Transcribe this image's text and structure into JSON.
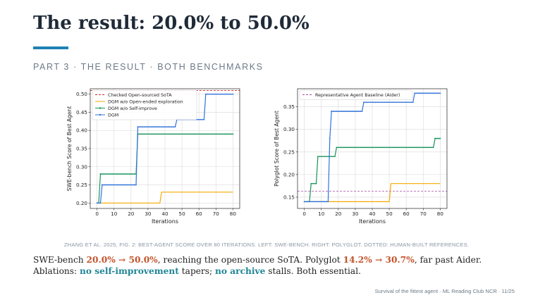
{
  "slide": {
    "title": "The result: 20.0% to 50.0%",
    "subtitle": "PART 3  ·  THE RESULT  ·  BOTH BENCHMARKS",
    "caption": "ZHANG ET AL. 2025, FIG. 2: BEST-AGENT SCORE OVER 80 ITERATIONS. LEFT: SWE-BENCH. RIGHT: POLYGLOT. DOTTED: HUMAN-BUILT REFERENCES.",
    "body": {
      "l1_a": "SWE-bench ",
      "l1_b": "20.0% → 50.0%",
      "l1_c": ", reaching the open-source SoTA. Polyglot ",
      "l1_d": "14.2% → 30.7%",
      "l1_e": ", far past Aider.",
      "l2_a": "Ablations: ",
      "l2_b": "no self-improvement",
      "l2_c": " tapers; ",
      "l2_d": "no archive",
      "l2_e": " stalls.  Both essential."
    },
    "footer": "Survival of the fittest agent  ·  ML Reading Club NCR  ·  11/25",
    "colors": {
      "accent_rule": "#1e82b4",
      "highlight": "#c4532b",
      "teal": "#1f8596"
    }
  },
  "chart_data": [
    {
      "type": "line",
      "xlabel": "Iterations",
      "ylabel": "SWE-bench Score of Best Agent",
      "xlim": [
        -4,
        84
      ],
      "ylim": [
        0.185,
        0.515
      ],
      "xticks": [
        0,
        10,
        20,
        30,
        40,
        50,
        60,
        70,
        80
      ],
      "yticks": [
        0.2,
        0.25,
        0.3,
        0.35,
        0.4,
        0.45,
        0.5
      ],
      "tick_decimals": 2,
      "grid": true,
      "legend_position": "top-left",
      "reference_lines": [
        {
          "name": "Checked Open-sourced SoTA",
          "y": 0.51,
          "color": "#d62728"
        }
      ],
      "series": [
        {
          "name": "DGM w/o Open-ended exploration",
          "color": "#f5a800",
          "marker": "none",
          "x": [
            0,
            37,
            38,
            80
          ],
          "y": [
            0.2,
            0.2,
            0.23,
            0.23
          ]
        },
        {
          "name": "DGM w/o Self-improve",
          "color": "#16935a",
          "marker": "dot",
          "x": [
            0,
            1,
            2,
            23,
            24,
            80
          ],
          "y": [
            0.2,
            0.2,
            0.28,
            0.28,
            0.39,
            0.39
          ]
        },
        {
          "name": "DGM",
          "color": "#2f72d9",
          "marker": "dot",
          "x": [
            0,
            2,
            3,
            23,
            24,
            46,
            47,
            63,
            64,
            80
          ],
          "y": [
            0.2,
            0.2,
            0.25,
            0.25,
            0.41,
            0.41,
            0.43,
            0.43,
            0.5,
            0.5
          ]
        }
      ]
    },
    {
      "type": "line",
      "xlabel": "Iterations",
      "ylabel": "Polyglot Score of Best Agent",
      "xlim": [
        -4,
        84
      ],
      "ylim": [
        0.125,
        0.39
      ],
      "xticks": [
        0,
        10,
        20,
        30,
        40,
        50,
        60,
        70,
        80
      ],
      "yticks": [
        0.15,
        0.2,
        0.25,
        0.3,
        0.35
      ],
      "tick_decimals": 2,
      "grid": true,
      "legend_position": "top-left",
      "reference_lines": [
        {
          "name": "Representative Agent Baseline (Aider)",
          "y": 0.163,
          "color": "#a64ca6"
        }
      ],
      "series": [
        {
          "name": "DGM w/o Open-ended exploration",
          "color": "#f5a800",
          "marker": "none",
          "x": [
            0,
            50,
            51,
            80
          ],
          "y": [
            0.14,
            0.14,
            0.18,
            0.18
          ]
        },
        {
          "name": "DGM w/o Self-improve",
          "color": "#16935a",
          "marker": "dot",
          "x": [
            0,
            3,
            4,
            7,
            8,
            18,
            19,
            76,
            77,
            80
          ],
          "y": [
            0.14,
            0.14,
            0.18,
            0.18,
            0.24,
            0.24,
            0.26,
            0.26,
            0.28,
            0.28
          ]
        },
        {
          "name": "DGM",
          "color": "#2f72d9",
          "marker": "dot",
          "x": [
            0,
            14,
            15,
            16,
            34,
            35,
            64,
            65,
            80
          ],
          "y": [
            0.14,
            0.14,
            0.28,
            0.34,
            0.34,
            0.36,
            0.36,
            0.38,
            0.38
          ]
        }
      ]
    }
  ]
}
